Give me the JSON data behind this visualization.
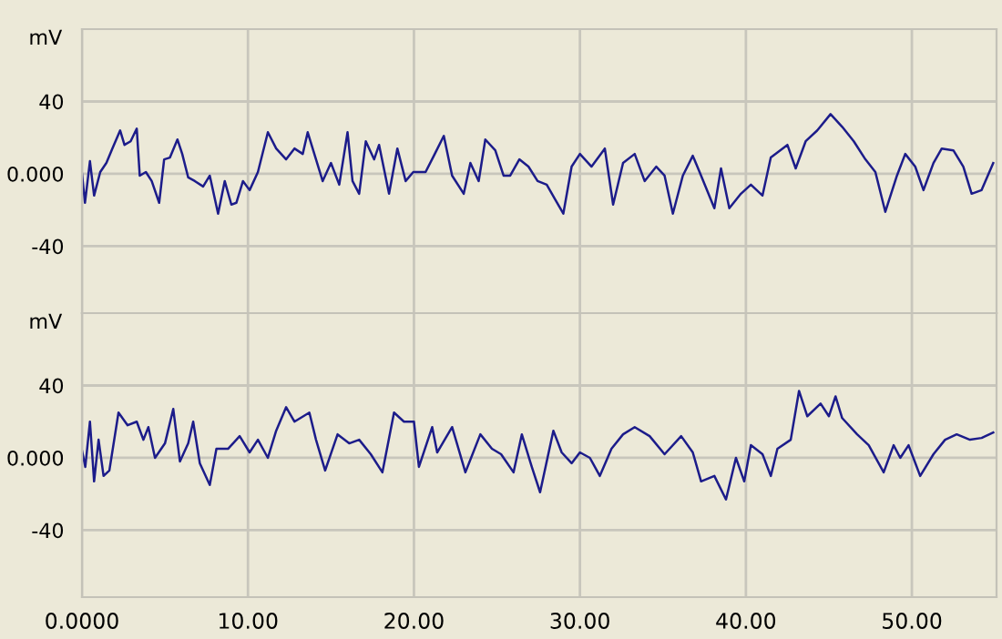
{
  "chart_data": [
    {
      "type": "line",
      "ylabel": "mV",
      "tick_labels": "y",
      "grid": true,
      "xlim": [
        0,
        55.1
      ],
      "xticks": [
        {
          "value": 0,
          "label": null
        },
        {
          "value": 10,
          "label": null
        },
        {
          "value": 20,
          "label": null
        },
        {
          "value": 30,
          "label": null
        },
        {
          "value": 40,
          "label": null
        },
        {
          "value": 50,
          "label": null
        }
      ],
      "ylim": [
        -77,
        80
      ],
      "yticks": [
        {
          "value": -40,
          "label": "-40"
        },
        {
          "value": 0,
          "label": "0.000"
        },
        {
          "value": 40,
          "label": "40"
        }
      ],
      "x": [
        0,
        0.18,
        0.48,
        0.73,
        1.1,
        1.47,
        1.83,
        2.3,
        2.56,
        2.93,
        3.3,
        3.48,
        3.85,
        4.2,
        4.65,
        4.95,
        5.3,
        5.75,
        6.04,
        6.4,
        6.8,
        7.3,
        7.7,
        8.2,
        8.6,
        9.0,
        9.3,
        9.7,
        10.1,
        10.6,
        11.2,
        11.7,
        12.3,
        12.8,
        13.3,
        13.6,
        14.1,
        14.5,
        15.0,
        15.5,
        16.0,
        16.3,
        16.7,
        17.1,
        17.6,
        17.9,
        18.5,
        19.0,
        19.5,
        19.96,
        20.7,
        21.2,
        21.8,
        22.3,
        23.0,
        23.4,
        23.9,
        24.3,
        24.9,
        25.4,
        25.8,
        26.35,
        26.9,
        27.45,
        28.0,
        28.5,
        29.0,
        29.5,
        30.0,
        30.7,
        31.5,
        32.0,
        32.6,
        33.3,
        33.9,
        34.6,
        35.1,
        35.6,
        36.2,
        36.8,
        37.3,
        38.1,
        38.5,
        39.0,
        39.7,
        40.3,
        41.0,
        41.5,
        42.5,
        43.0,
        43.6,
        44.3,
        45.1,
        45.8,
        46.5,
        47.2,
        47.8,
        48.4,
        49.1,
        49.6,
        50.2,
        50.7,
        51.3,
        51.8,
        52.5,
        53.1,
        53.6,
        54.2,
        54.9
      ],
      "series": [
        {
          "color": "#1c1c8a",
          "values": [
            0,
            -16,
            7,
            -12,
            1,
            6,
            14,
            24,
            16,
            18,
            25,
            -1,
            1,
            -4,
            -16,
            8,
            9,
            19,
            11,
            -2,
            -4,
            -7,
            -1,
            -22,
            -4,
            -17,
            -16,
            -4,
            -9,
            1,
            23,
            14,
            8,
            14,
            11,
            23,
            8,
            -4,
            6,
            -6,
            23,
            -4,
            -11,
            18,
            8,
            16,
            -11,
            14,
            -4,
            1,
            1,
            10,
            21,
            -1,
            -11,
            6,
            -4,
            19,
            13,
            -1,
            -1,
            8,
            4,
            -4,
            -6,
            -14,
            -22,
            4,
            11,
            4,
            14,
            -17,
            6,
            11,
            -4,
            4,
            -1,
            -22,
            -1,
            10,
            -1,
            -19,
            3,
            -19,
            -11,
            -6,
            -12,
            9,
            16,
            3,
            18,
            24,
            33,
            26,
            18,
            8,
            1,
            -21,
            -1,
            11,
            4,
            -9,
            6,
            14,
            13,
            4,
            -11,
            -9,
            6
          ]
        }
      ]
    },
    {
      "type": "line",
      "ylabel": "mV",
      "grid": true,
      "xlim": [
        0,
        55.1
      ],
      "xticks": [
        {
          "value": 0,
          "label": "0.0000"
        },
        {
          "value": 10,
          "label": "10.00"
        },
        {
          "value": 20,
          "label": "20.00"
        },
        {
          "value": 30,
          "label": "30.00"
        },
        {
          "value": 40,
          "label": "40.00"
        },
        {
          "value": 50,
          "label": "50.00"
        }
      ],
      "ylim": [
        -77,
        80
      ],
      "yticks": [
        {
          "value": -40,
          "label": "-40"
        },
        {
          "value": 0,
          "label": "0.000"
        },
        {
          "value": 40,
          "label": "40"
        }
      ],
      "x": [
        0,
        0.2,
        0.48,
        0.73,
        1.0,
        1.3,
        1.65,
        2.2,
        2.75,
        3.3,
        3.7,
        4.0,
        4.4,
        5.0,
        5.5,
        5.9,
        6.4,
        6.7,
        7.1,
        7.7,
        8.1,
        8.8,
        9.5,
        10.1,
        10.6,
        11.2,
        11.7,
        12.3,
        12.8,
        13.7,
        14.1,
        14.65,
        15.4,
        16.1,
        16.7,
        17.4,
        18.1,
        18.8,
        19.4,
        20.0,
        20.3,
        21.1,
        21.4,
        22.3,
        23.1,
        24.0,
        24.7,
        25.25,
        26.0,
        26.5,
        27.1,
        27.6,
        28.4,
        28.9,
        29.5,
        30.0,
        30.6,
        31.2,
        31.9,
        32.6,
        33.3,
        34.2,
        35.1,
        36.1,
        36.8,
        37.3,
        38.1,
        38.8,
        39.4,
        39.9,
        40.3,
        41.0,
        41.5,
        41.9,
        42.7,
        43.2,
        43.7,
        44.5,
        45.0,
        45.4,
        45.8,
        46.7,
        47.4,
        48.3,
        48.9,
        49.3,
        49.8,
        50.5,
        51.3,
        52.0,
        52.7,
        53.5,
        54.2,
        54.9
      ],
      "series": [
        {
          "color": "#1c1c8a",
          "values": [
            4,
            -5,
            20,
            -13,
            10,
            -10,
            -7,
            25,
            18,
            20,
            10,
            17,
            0,
            8,
            27,
            -2,
            8,
            20,
            -3,
            -15,
            5,
            5,
            12,
            3,
            10,
            0,
            15,
            28,
            20,
            25,
            10,
            -7,
            13,
            8,
            10,
            2,
            -8,
            25,
            20,
            20,
            -5,
            17,
            3,
            17,
            -8,
            13,
            5,
            2,
            -8,
            13,
            -5,
            -19,
            15,
            3,
            -3,
            3,
            0,
            -10,
            5,
            13,
            17,
            12,
            2,
            12,
            3,
            -13,
            -10,
            -23,
            0,
            -13,
            7,
            2,
            -10,
            5,
            10,
            37,
            23,
            30,
            23,
            34,
            22,
            13,
            7,
            -8,
            7,
            0,
            7,
            -10,
            2,
            10,
            13,
            10,
            11,
            14
          ]
        }
      ]
    }
  ]
}
